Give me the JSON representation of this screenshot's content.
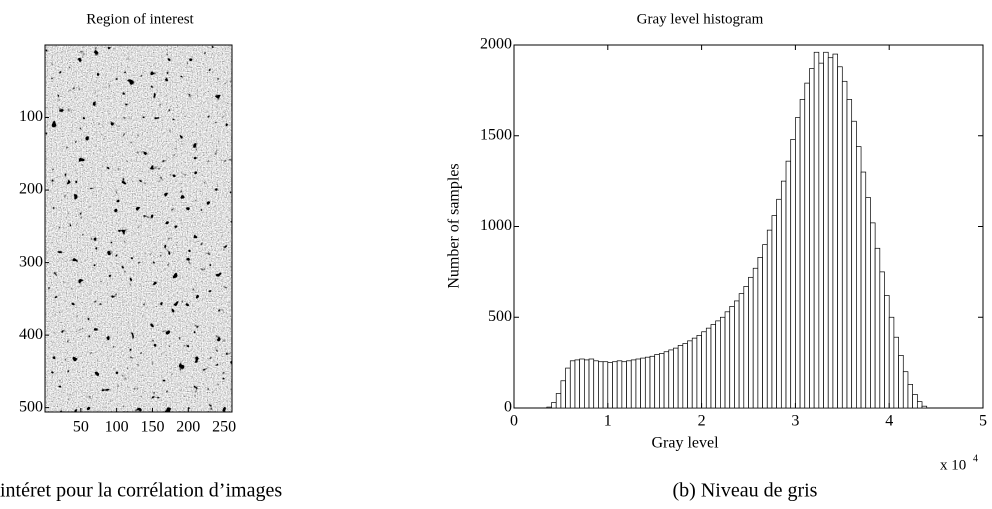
{
  "chart_data": [
    {
      "type": "image",
      "title": "Region of interest",
      "xlim": [
        0,
        261
      ],
      "xticks": [
        50,
        100,
        150,
        200,
        250
      ],
      "ylim": [
        0,
        506
      ],
      "yticks": [
        100,
        200,
        300,
        400,
        500
      ],
      "y_reversed": true
    },
    {
      "type": "histogram",
      "title": "Gray level histogram",
      "xlabel": "Gray level",
      "ylabel": "Number of samples",
      "x_multiplier": "x 10",
      "x_multiplier_exp": "4",
      "xlim": [
        0,
        50000
      ],
      "xticks": [
        0,
        {
          "value": 10000,
          "label": "1"
        },
        {
          "value": 20000,
          "label": "2"
        },
        {
          "value": 30000,
          "label": "3"
        },
        {
          "value": 40000,
          "label": "4"
        },
        {
          "value": 50000,
          "label": "5"
        }
      ],
      "ylim": [
        0,
        2000
      ],
      "yticks": [
        0,
        500,
        1000,
        1500,
        2000
      ],
      "color": "#000000",
      "bins": [
        3500,
        4000,
        4500,
        5000,
        5500,
        6000,
        6500,
        7000,
        7500,
        8000,
        8500,
        9000,
        9500,
        10000,
        10500,
        11000,
        11500,
        12000,
        12500,
        13000,
        13500,
        14000,
        14500,
        15000,
        15500,
        16000,
        16500,
        17000,
        17500,
        18000,
        18500,
        19000,
        19500,
        20000,
        20500,
        21000,
        21500,
        22000,
        22500,
        23000,
        23500,
        24000,
        24500,
        25000,
        25500,
        26000,
        26500,
        27000,
        27500,
        28000,
        28500,
        29000,
        29500,
        30000,
        30500,
        31000,
        31500,
        32000,
        32500,
        33000,
        33500,
        34000,
        34500,
        35000,
        35500,
        36000,
        36500,
        37000,
        37500,
        38000,
        38500,
        39000,
        39500,
        40000,
        40500,
        41000,
        41500,
        42000,
        42500,
        43000,
        43500,
        44000
      ],
      "values": [
        5,
        30,
        80,
        150,
        220,
        260,
        265,
        270,
        265,
        270,
        260,
        255,
        255,
        250,
        255,
        260,
        255,
        260,
        265,
        270,
        275,
        280,
        285,
        295,
        300,
        310,
        320,
        330,
        345,
        355,
        370,
        385,
        400,
        420,
        440,
        460,
        480,
        500,
        530,
        560,
        590,
        630,
        670,
        720,
        770,
        830,
        900,
        980,
        1060,
        1150,
        1250,
        1360,
        1480,
        1600,
        1700,
        1790,
        1870,
        1960,
        1900,
        1960,
        1930,
        1950,
        1880,
        1800,
        1700,
        1580,
        1440,
        1300,
        1160,
        1020,
        880,
        750,
        620,
        500,
        390,
        290,
        200,
        130,
        75,
        35,
        10
      ]
    }
  ],
  "captions": [
    "intéret pour la corrélation d’images",
    "(b) Niveau de gris"
  ]
}
